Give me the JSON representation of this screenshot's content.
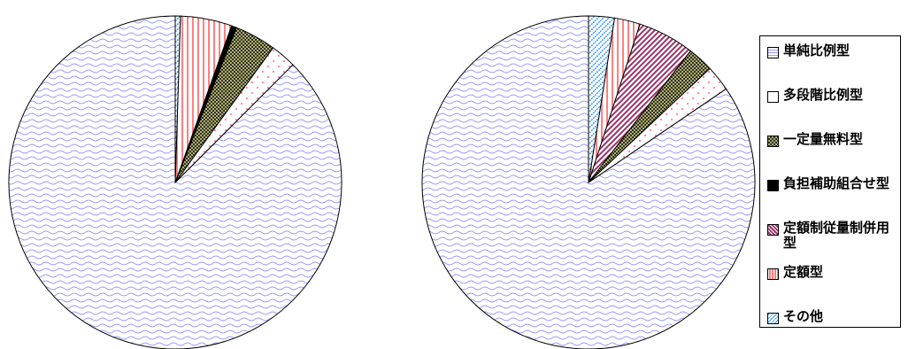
{
  "chart_data": [
    {
      "type": "pie",
      "start_angle_deg": 0,
      "direction": "counterclockwise",
      "slices": [
        {
          "category": "単純比例型",
          "value": 87.5
        },
        {
          "category": "多段階比例型",
          "value": 2.5
        },
        {
          "category": "一定量無料型",
          "value": 4.0
        },
        {
          "category": "負担補助組合せ型",
          "value": 0.5
        },
        {
          "category": "定額制従量制併用型",
          "value": 0.0
        },
        {
          "category": "定額型",
          "value": 5.0
        },
        {
          "category": "その他",
          "value": 0.5
        }
      ]
    },
    {
      "type": "pie",
      "start_angle_deg": 0,
      "direction": "counterclockwise",
      "slices": [
        {
          "category": "単純比例型",
          "value": 84.5
        },
        {
          "category": "多段階比例型",
          "value": 2.5
        },
        {
          "category": "一定量無料型",
          "value": 2.5
        },
        {
          "category": "負担補助組合せ型",
          "value": 0.0
        },
        {
          "category": "定額制従量制併用型",
          "value": 5.5
        },
        {
          "category": "定額型",
          "value": 2.5
        },
        {
          "category": "その他",
          "value": 2.5
        }
      ]
    }
  ],
  "legend": {
    "placement": "right",
    "items": [
      {
        "label": "単純比例型",
        "pattern": "wave",
        "color": "#9999ff"
      },
      {
        "label": "多段階比例型",
        "pattern": "dots",
        "color": "#ff6699"
      },
      {
        "label": "一定量無料型",
        "pattern": "checker",
        "color": "#333300"
      },
      {
        "label": "負担補助組合せ型",
        "pattern": "solid",
        "color": "#000000"
      },
      {
        "label": "定額制従量制併用型",
        "pattern": "diagonal",
        "color": "#993366"
      },
      {
        "label": "定額型",
        "pattern": "vstripes",
        "color": "#ff8080"
      },
      {
        "label": "その他",
        "pattern": "diagdash",
        "color": "#3399ff"
      }
    ]
  }
}
